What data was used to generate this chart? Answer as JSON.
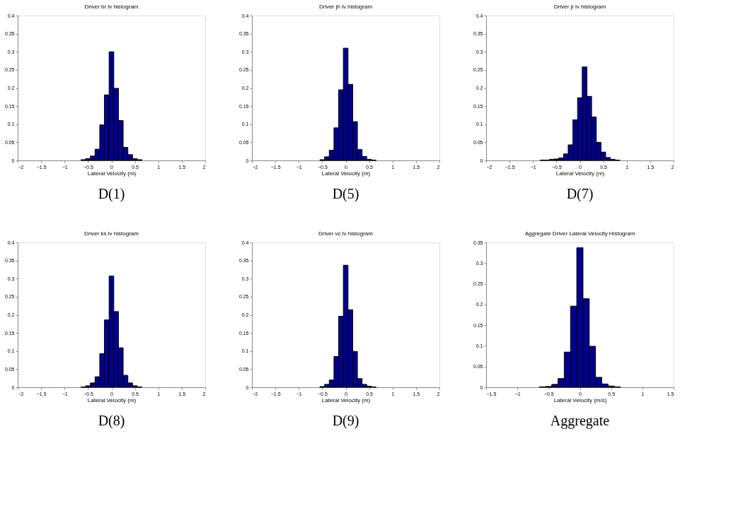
{
  "chart_data": [
    {
      "type": "histogram",
      "title": "Driver br lv histogram",
      "xlabel": "Lateral Velocity (m)",
      "annotations": [
        "D(1)"
      ],
      "color": "#00008b",
      "grid": false,
      "bins": [
        -0.65,
        -0.55,
        -0.45,
        -0.35,
        -0.25,
        -0.15,
        -0.05,
        0.05,
        0.15,
        0.25,
        0.35,
        0.45,
        0.55,
        0.65
      ],
      "values": [
        0.002,
        0.005,
        0.012,
        0.031,
        0.098,
        0.181,
        0.3,
        0.199,
        0.11,
        0.036,
        0.016,
        0.005,
        0.002
      ],
      "xlim": [
        -2,
        2
      ],
      "xticks": [
        -2,
        -1.5,
        -1,
        -0.5,
        0,
        0.5,
        1,
        1.5,
        2
      ],
      "ylim": [
        0,
        0.4
      ],
      "yticks": [
        0,
        0.05,
        0.1,
        0.15,
        0.2,
        0.25,
        0.3,
        0.35,
        0.4
      ]
    },
    {
      "type": "histogram",
      "title": "Driver jh lv histogram",
      "xlabel": "Lateral Velocity (m)",
      "annotations": [
        "D(5)"
      ],
      "color": "#00008b",
      "grid": false,
      "bins": [
        -0.65,
        -0.55,
        -0.45,
        -0.35,
        -0.25,
        -0.15,
        -0.05,
        0.05,
        0.15,
        0.25,
        0.35,
        0.45,
        0.55,
        0.65
      ],
      "values": [
        0,
        0.002,
        0.01,
        0.028,
        0.09,
        0.195,
        0.31,
        0.21,
        0.107,
        0.03,
        0.011,
        0.003,
        0.001
      ],
      "xlim": [
        -2,
        2
      ],
      "xticks": [
        -2,
        -1.5,
        -1,
        -0.5,
        0,
        0.5,
        1,
        1.5,
        2
      ],
      "ylim": [
        0,
        0.4
      ],
      "yticks": [
        0,
        0.05,
        0.1,
        0.15,
        0.2,
        0.25,
        0.3,
        0.35,
        0.4
      ]
    },
    {
      "type": "histogram",
      "title": "Driver jr lv histogram",
      "xlabel": "Lateral Velocity (m)",
      "annotations": [
        "D(7)"
      ],
      "color": "#00008b",
      "grid": false,
      "bins": [
        -0.85,
        -0.75,
        -0.65,
        -0.55,
        -0.45,
        -0.35,
        -0.25,
        -0.15,
        -0.05,
        0.05,
        0.15,
        0.25,
        0.35,
        0.45,
        0.55,
        0.65,
        0.75,
        0.85
      ],
      "values": [
        0.001,
        0.001,
        0.003,
        0.004,
        0.007,
        0.018,
        0.043,
        0.112,
        0.173,
        0.258,
        0.177,
        0.12,
        0.05,
        0.023,
        0.008,
        0.003,
        0.001
      ],
      "xlim": [
        -2,
        2
      ],
      "xticks": [
        -2,
        -1.5,
        -1,
        -0.5,
        0,
        0.5,
        1,
        1.5,
        2
      ],
      "ylim": [
        0,
        0.4
      ],
      "yticks": [
        0,
        0.05,
        0.1,
        0.15,
        0.2,
        0.25,
        0.3,
        0.35,
        0.4
      ]
    },
    {
      "type": "histogram",
      "title": "Driver ks lv histogram",
      "xlabel": "Lateral Velocity (m)",
      "annotations": [
        "D(8)"
      ],
      "color": "#00008b",
      "grid": false,
      "bins": [
        -0.65,
        -0.55,
        -0.45,
        -0.35,
        -0.25,
        -0.15,
        -0.05,
        0.05,
        0.15,
        0.25,
        0.35,
        0.45,
        0.55,
        0.65
      ],
      "values": [
        0.001,
        0.004,
        0.012,
        0.029,
        0.093,
        0.186,
        0.307,
        0.209,
        0.109,
        0.033,
        0.012,
        0.004,
        0.001
      ],
      "xlim": [
        -2,
        2
      ],
      "xticks": [
        -2,
        -1.5,
        -1,
        -0.5,
        0,
        0.5,
        1,
        1.5,
        2
      ],
      "ylim": [
        0,
        0.4
      ],
      "yticks": [
        0,
        0.05,
        0.1,
        0.15,
        0.2,
        0.25,
        0.3,
        0.35,
        0.4
      ]
    },
    {
      "type": "histogram",
      "title": "Driver vc lv histogram",
      "xlabel": "Lateral Velocity (m)",
      "annotations": [
        "D(9)"
      ],
      "color": "#00008b",
      "grid": false,
      "bins": [
        -0.65,
        -0.55,
        -0.45,
        -0.35,
        -0.25,
        -0.15,
        -0.05,
        0.05,
        0.15,
        0.25,
        0.35,
        0.45,
        0.55,
        0.65
      ],
      "values": [
        0,
        0.002,
        0.008,
        0.02,
        0.085,
        0.196,
        0.337,
        0.214,
        0.099,
        0.024,
        0.008,
        0.003,
        0.001
      ],
      "xlim": [
        -2,
        2
      ],
      "xticks": [
        -2,
        -1.5,
        -1,
        -0.5,
        0,
        0.5,
        1,
        1.5,
        2
      ],
      "ylim": [
        0,
        0.4
      ],
      "yticks": [
        0,
        0.05,
        0.1,
        0.15,
        0.2,
        0.25,
        0.3,
        0.35,
        0.4
      ]
    },
    {
      "type": "histogram",
      "title": "Aggregate Driver Lateral Velocity Histogram",
      "xlabel": "Lateral Velocity (m/s)",
      "annotations": [
        "Aggregate"
      ],
      "color": "#00008b",
      "grid": false,
      "bins": [
        -0.65,
        -0.55,
        -0.45,
        -0.35,
        -0.25,
        -0.15,
        -0.05,
        0.05,
        0.15,
        0.25,
        0.35,
        0.45,
        0.55,
        0.65
      ],
      "values": [
        0.001,
        0.002,
        0.007,
        0.021,
        0.085,
        0.196,
        0.337,
        0.214,
        0.099,
        0.024,
        0.008,
        0.003,
        0.001
      ],
      "xlim": [
        -1.5,
        1.5
      ],
      "xticks": [
        -1.5,
        -1,
        -0.5,
        0,
        0.5,
        1,
        1.5
      ],
      "ylim": [
        0,
        0.35
      ],
      "yticks": [
        0,
        0.05,
        0.1,
        0.15,
        0.2,
        0.25,
        0.3,
        0.35
      ]
    }
  ]
}
